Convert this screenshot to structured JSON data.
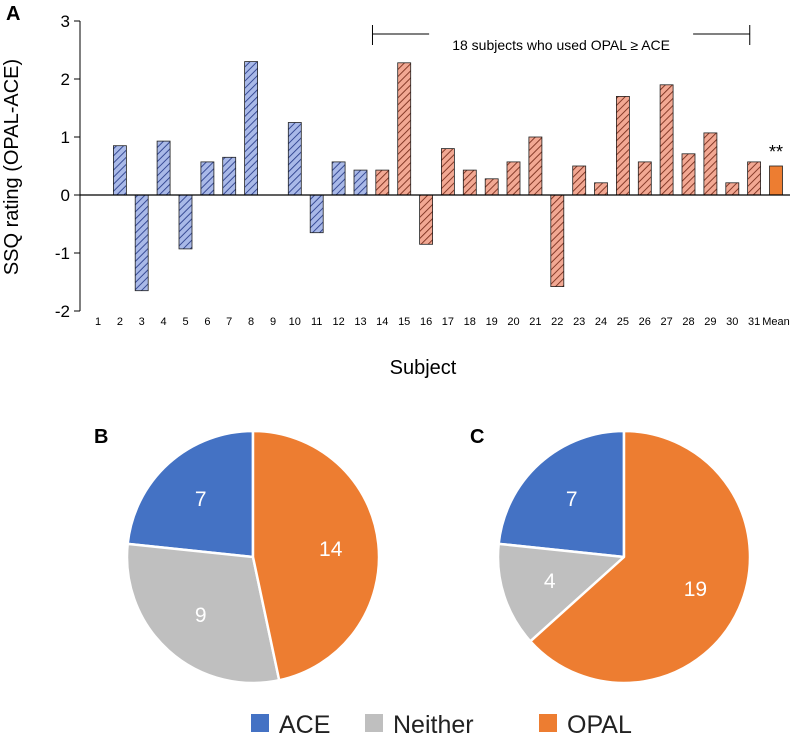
{
  "chart_data": [
    {
      "panel": "A",
      "type": "bar",
      "title": "",
      "xlabel": "Subject",
      "ylabel": "SSQ rating (OPAL-ACE)",
      "ylim": [
        -2,
        3
      ],
      "yticks": [
        "-2",
        "-1",
        "0",
        "1",
        "2",
        "3"
      ],
      "categories": [
        "1",
        "2",
        "3",
        "4",
        "5",
        "6",
        "7",
        "8",
        "9",
        "10",
        "11",
        "12",
        "13",
        "14",
        "15",
        "16",
        "17",
        "18",
        "19",
        "20",
        "21",
        "22",
        "23",
        "24",
        "25",
        "26",
        "27",
        "28",
        "29",
        "30",
        "31",
        "Mean"
      ],
      "values": [
        0,
        0.85,
        -1.65,
        0.93,
        -0.93,
        0.57,
        0.65,
        2.3,
        0,
        1.25,
        -0.65,
        0.57,
        0.43,
        0.43,
        2.28,
        -0.85,
        0.8,
        0.43,
        0.28,
        0.57,
        1.0,
        -1.58,
        0.5,
        0.21,
        1.7,
        0.57,
        1.9,
        0.71,
        1.07,
        0.21,
        0.57,
        0.5
      ],
      "groups": [
        "blue",
        "blue",
        "blue",
        "blue",
        "blue",
        "blue",
        "blue",
        "blue",
        "blue",
        "blue",
        "blue",
        "blue",
        "blue",
        "red",
        "red",
        "red",
        "red",
        "red",
        "red",
        "red",
        "red",
        "red",
        "red",
        "red",
        "red",
        "red",
        "red",
        "red",
        "red",
        "red",
        "red",
        "mean"
      ],
      "bracket_label": "18 subjects who used OPAL ≥ ACE",
      "mean_annotation": "**"
    },
    {
      "panel": "B",
      "type": "pie",
      "labels": [
        "ACE",
        "Neither",
        "OPAL"
      ],
      "values": [
        7,
        9,
        14
      ],
      "display": [
        "7",
        "9",
        "14"
      ]
    },
    {
      "panel": "C",
      "type": "pie",
      "labels": [
        "ACE",
        "Neither",
        "OPAL"
      ],
      "values": [
        7,
        4,
        19
      ],
      "display": [
        "7",
        "4",
        "19"
      ]
    }
  ],
  "legend": [
    {
      "label": "ACE",
      "color": "#4472C4"
    },
    {
      "label": "Neither",
      "color": "#BFBFBF"
    },
    {
      "label": "OPAL",
      "color": "#ED7D31"
    }
  ],
  "colors": {
    "blue_fill": "#A9B9E8",
    "blue_hatch": "#2B3F8C",
    "red_fill": "#F2A893",
    "red_hatch": "#7A2E1C",
    "mean_fill": "#ED7D31"
  }
}
